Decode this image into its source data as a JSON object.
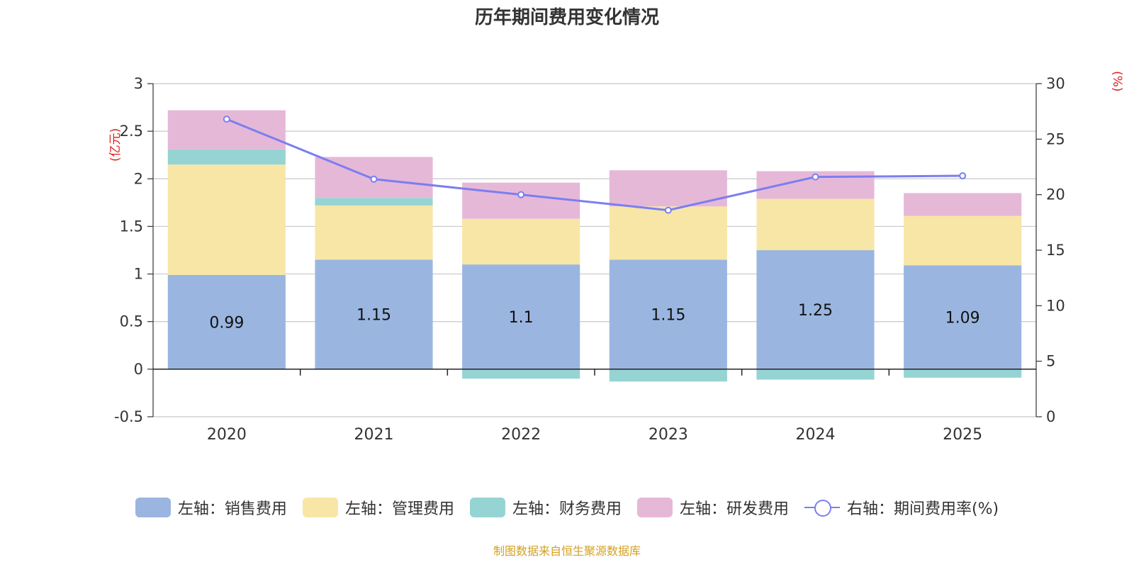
{
  "chart_data": {
    "type": "bar",
    "title": "历年期间费用变化情况",
    "categories": [
      "2020",
      "2021",
      "2022",
      "2023",
      "2024",
      "2025"
    ],
    "left_axis": {
      "unit": "(亿元)",
      "ylim": [
        -0.5,
        3
      ],
      "ticks": [
        -0.5,
        0,
        0.5,
        1,
        1.5,
        2,
        2.5,
        3
      ]
    },
    "right_axis": {
      "unit": "(%)",
      "ylim": [
        0,
        30
      ],
      "ticks": [
        0,
        5,
        10,
        15,
        20,
        25,
        30
      ]
    },
    "series": [
      {
        "name": "左轴：销售费用",
        "kind": "stacked_bar",
        "axis": "left",
        "color": "#9ab6e0",
        "values": [
          0.99,
          1.15,
          1.1,
          1.15,
          1.25,
          1.09
        ],
        "show_labels": true
      },
      {
        "name": "左轴：管理费用",
        "kind": "stacked_bar",
        "axis": "left",
        "color": "#f7e6a6",
        "values": [
          1.16,
          0.57,
          0.48,
          0.56,
          0.54,
          0.52
        ]
      },
      {
        "name": "左轴：财务费用",
        "kind": "stacked_bar",
        "axis": "left",
        "color": "#96d4d4",
        "values": [
          0.16,
          0.08,
          -0.1,
          -0.13,
          -0.11,
          -0.09
        ]
      },
      {
        "name": "左轴：研发费用",
        "kind": "stacked_bar",
        "axis": "left",
        "color": "#e6b8d8",
        "values": [
          0.41,
          0.43,
          0.38,
          0.38,
          0.29,
          0.24
        ]
      },
      {
        "name": "右轴：期间费用率(%)",
        "kind": "line",
        "axis": "right",
        "color": "#7b7ef0",
        "values": [
          26.8,
          21.4,
          20.0,
          18.6,
          21.6,
          21.7
        ]
      }
    ],
    "source": "制图数据来自恒生聚源数据库"
  }
}
